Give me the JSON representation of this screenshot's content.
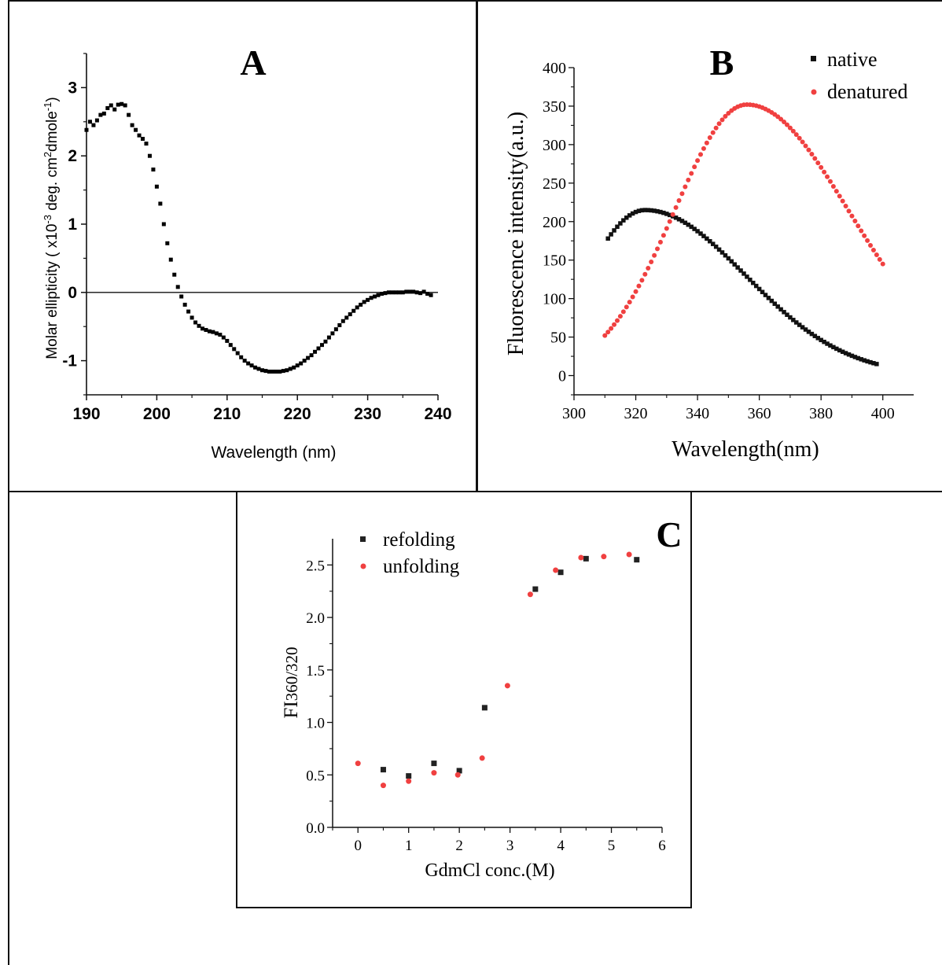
{
  "chart_data": [
    {
      "type": "scatter",
      "panel_label": "A",
      "xlabel": "Wavelength (nm)",
      "ylabel": "Molar ellipticity ( x10",
      "ylabel_exp": "-3",
      "ylabel_rest": " deg. cm",
      "ylabel_exp2": "2",
      "ylabel_rest2": "dmole",
      "ylabel_exp3": "-1",
      "ylabel_end": ")",
      "xlim": [
        190,
        240
      ],
      "ylim": [
        -1.5,
        3.5
      ],
      "xticks": [
        190,
        200,
        210,
        220,
        230,
        240
      ],
      "yticks": [
        -1,
        0,
        1,
        2,
        3
      ],
      "zero_line": true,
      "series": [
        {
          "color": "#000000",
          "marker": "square",
          "x": [
            190,
            190.5,
            191,
            191.5,
            192,
            192.5,
            193,
            193.5,
            194,
            194.5,
            195,
            195.5,
            196,
            196.5,
            197,
            197.5,
            198,
            198.5,
            199,
            199.5,
            200,
            200.5,
            201,
            201.5,
            202,
            202.5,
            203,
            203.5,
            204,
            204.5,
            205,
            205.5,
            206,
            206.5,
            207,
            207.5,
            208,
            208.5,
            209,
            209.5,
            210,
            210.5,
            211,
            211.5,
            212,
            212.5,
            213,
            213.5,
            214,
            214.5,
            215,
            215.5,
            216,
            216.5,
            217,
            217.5,
            218,
            218.5,
            219,
            219.5,
            220,
            220.5,
            221,
            221.5,
            222,
            222.5,
            223,
            223.5,
            224,
            224.5,
            225,
            225.5,
            226,
            226.5,
            227,
            227.5,
            228,
            228.5,
            229,
            229.5,
            230,
            230.5,
            231,
            231.5,
            232,
            232.5,
            233,
            233.5,
            234,
            234.5,
            235,
            235.5,
            236,
            236.5,
            237,
            237.5,
            238,
            238.5,
            239
          ],
          "y": [
            2.38,
            2.5,
            2.45,
            2.52,
            2.6,
            2.62,
            2.7,
            2.74,
            2.68,
            2.75,
            2.76,
            2.74,
            2.6,
            2.45,
            2.38,
            2.3,
            2.25,
            2.18,
            2.0,
            1.8,
            1.55,
            1.3,
            1.0,
            0.72,
            0.48,
            0.26,
            0.08,
            -0.06,
            -0.18,
            -0.28,
            -0.37,
            -0.44,
            -0.49,
            -0.53,
            -0.55,
            -0.57,
            -0.58,
            -0.6,
            -0.62,
            -0.66,
            -0.71,
            -0.77,
            -0.83,
            -0.89,
            -0.95,
            -1.0,
            -1.04,
            -1.07,
            -1.1,
            -1.12,
            -1.14,
            -1.15,
            -1.16,
            -1.16,
            -1.16,
            -1.16,
            -1.15,
            -1.14,
            -1.12,
            -1.1,
            -1.07,
            -1.04,
            -1.0,
            -0.96,
            -0.92,
            -0.87,
            -0.82,
            -0.77,
            -0.72,
            -0.66,
            -0.6,
            -0.54,
            -0.48,
            -0.42,
            -0.37,
            -0.32,
            -0.27,
            -0.22,
            -0.18,
            -0.14,
            -0.11,
            -0.08,
            -0.06,
            -0.04,
            -0.02,
            -0.01,
            0.0,
            0.0,
            0.0,
            0.0,
            0.0,
            0.01,
            0.01,
            0.01,
            0.0,
            -0.01,
            0.01,
            -0.02,
            -0.04
          ]
        }
      ]
    },
    {
      "type": "scatter",
      "panel_label": "B",
      "xlabel": "Wavelength(nm)",
      "ylabel": "Fluorescence intensity(a.u.)",
      "xlim": [
        300,
        410
      ],
      "ylim": [
        -25,
        400
      ],
      "xticks": [
        300,
        320,
        340,
        360,
        380,
        400
      ],
      "yticks": [
        0,
        50,
        100,
        150,
        200,
        250,
        300,
        350,
        400
      ],
      "legend_position": "top-right",
      "series": [
        {
          "name": "native",
          "color": "#111111",
          "marker": "square",
          "x_start": 311,
          "x_end": 398,
          "x_step": 1,
          "peak_x": 323,
          "peak_y": 215,
          "start_y": 178,
          "end_y": 15
        },
        {
          "name": "denatured",
          "color": "#f04040",
          "marker": "circle",
          "x_start": 310,
          "x_end": 400,
          "x_step": 1,
          "peak_x": 356,
          "peak_y": 352,
          "start_y": 52,
          "end_y": 145
        }
      ]
    },
    {
      "type": "scatter",
      "panel_label": "C",
      "xlabel": "GdmCl conc.(M)",
      "ylabel_main": "FI",
      "ylabel_sub": "360/320",
      "xlim": [
        -0.5,
        6
      ],
      "ylim": [
        0.0,
        2.75
      ],
      "xticks": [
        0,
        1,
        2,
        3,
        4,
        5,
        6
      ],
      "yticks": [
        "0.0",
        "0.5",
        "1.0",
        "1.5",
        "2.0",
        "2.5"
      ],
      "legend_position": "top-left",
      "series": [
        {
          "name": "refolding",
          "color": "#222222",
          "marker": "square",
          "x": [
            0.5,
            1.0,
            1.5,
            2.0,
            2.5,
            3.5,
            4.0,
            4.5,
            5.5
          ],
          "y": [
            0.55,
            0.49,
            0.61,
            0.54,
            1.14,
            2.27,
            2.43,
            2.56,
            2.55
          ]
        },
        {
          "name": "unfolding",
          "color": "#f04040",
          "marker": "circle",
          "x": [
            0.0,
            0.5,
            1.0,
            1.5,
            1.97,
            2.45,
            2.95,
            3.4,
            3.9,
            4.4,
            4.85,
            5.35
          ],
          "y": [
            0.61,
            0.4,
            0.44,
            0.52,
            0.5,
            0.66,
            1.35,
            2.22,
            2.45,
            2.57,
            2.58,
            2.6
          ]
        }
      ]
    }
  ]
}
